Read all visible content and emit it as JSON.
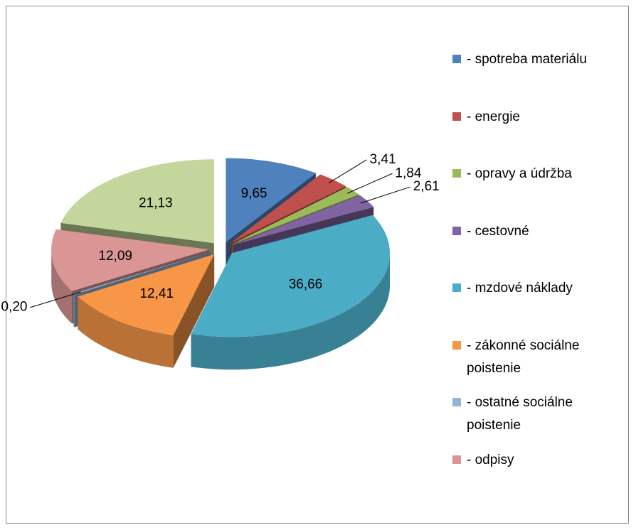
{
  "chart_data": {
    "type": "pie3d",
    "categories": [
      "- spotreba materiálu",
      "- energie",
      "- opravy a údržba",
      "- cestovné",
      "- mzdové náklady",
      "- zákonné sociálne poistenie",
      "- ostatné sociálne poistenie",
      "- odpisy",
      null
    ],
    "values": [
      9.65,
      3.41,
      1.84,
      2.61,
      36.66,
      12.41,
      0.2,
      12.09,
      21.13
    ],
    "value_labels": [
      "9,65",
      "3,41",
      "1,84",
      "2,61",
      "36,66",
      "12,41",
      "0,20",
      "12,09",
      "21,13"
    ],
    "colors": [
      "#4f81bd",
      "#c0504d",
      "#9bbb59",
      "#8064a2",
      "#4bacc6",
      "#f79646",
      "#95b3d7",
      "#d99694",
      "#c3d69b"
    ],
    "legend": "right"
  }
}
